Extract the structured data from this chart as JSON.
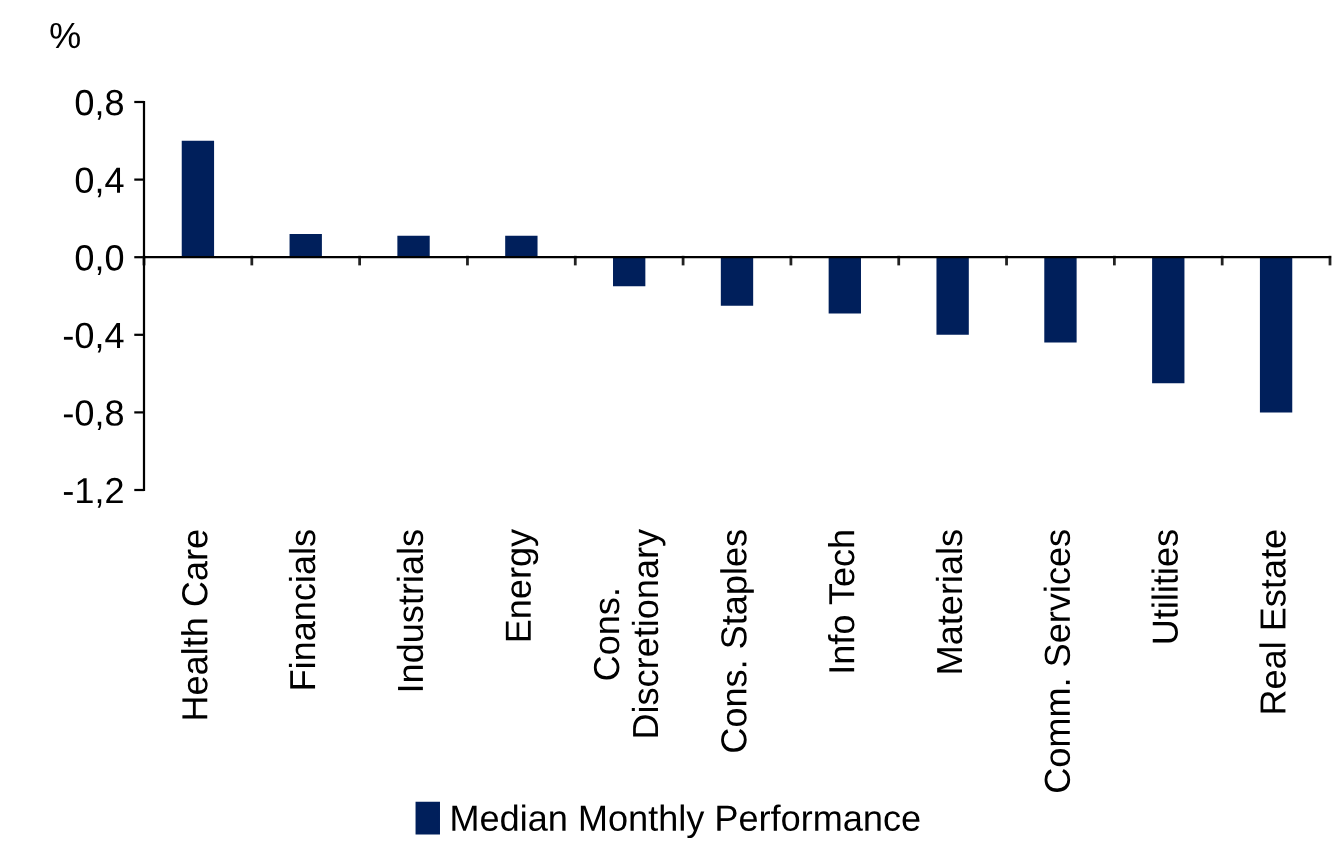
{
  "chart_data": {
    "type": "bar",
    "ylabel": "%",
    "categories": [
      "Health Care",
      "Financials",
      "Industrials",
      "Energy",
      "Cons.\nDiscretionary",
      "Cons. Staples",
      "Info Tech",
      "Materials",
      "Comm. Services",
      "Utilities",
      "Real Estate"
    ],
    "series": [
      {
        "name": "Median Monthly Performance",
        "color": "#001f5b",
        "values": [
          0.6,
          0.12,
          0.11,
          0.11,
          -0.15,
          -0.25,
          -0.29,
          -0.4,
          -0.44,
          -0.65,
          -0.8
        ]
      }
    ],
    "ylim": [
      -1.2,
      0.8
    ],
    "yticks": [
      {
        "value": -1.2,
        "label": "-1,2"
      },
      {
        "value": -0.8,
        "label": "-0,8"
      },
      {
        "value": -0.4,
        "label": "-0,4"
      },
      {
        "value": 0,
        "label": "0,0"
      },
      {
        "value": 0.4,
        "label": "0,4"
      },
      {
        "value": 0.8,
        "label": "0,8"
      }
    ],
    "legend": "bottom"
  }
}
